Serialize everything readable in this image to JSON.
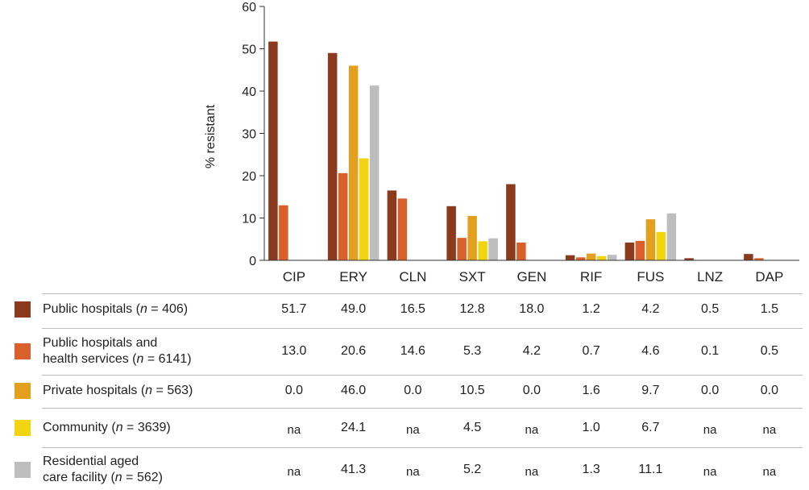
{
  "colors": [
    "#8b3a1e",
    "#d9602b",
    "#e3a01e",
    "#f2d410",
    "#bdbdbd"
  ],
  "chart_data": {
    "type": "bar",
    "title": "",
    "xlabel": "",
    "ylabel": "% resistant",
    "ylim": [
      0,
      60
    ],
    "yticks": [
      0,
      10,
      20,
      30,
      40,
      50,
      60
    ],
    "grid": false,
    "categories": [
      "CIP",
      "ERY",
      "CLN",
      "SXT",
      "GEN",
      "RIF",
      "FUS",
      "LNZ",
      "DAP"
    ],
    "series": [
      {
        "legend_prefix": "Public hospitals (",
        "n_label": "n",
        "n_suffix": " = 406)",
        "values": [
          51.7,
          49.0,
          16.5,
          12.8,
          18.0,
          1.2,
          4.2,
          0.5,
          1.5
        ],
        "labels": [
          "51.7",
          "49.0",
          "16.5",
          "12.8",
          "18.0",
          "1.2",
          "4.2",
          "0.5",
          "1.5"
        ]
      },
      {
        "legend_line1": "Public hospitals and",
        "legend_prefix": "health services (",
        "n_label": "n",
        "n_suffix": "  = 6141)",
        "values": [
          13.0,
          20.6,
          14.6,
          5.3,
          4.2,
          0.7,
          4.6,
          0.1,
          0.5
        ],
        "labels": [
          "13.0",
          "20.6",
          "14.6",
          "5.3",
          "4.2",
          "0.7",
          "4.6",
          "0.1",
          "0.5"
        ]
      },
      {
        "legend_prefix": "Private hospitals (",
        "n_label": "n",
        "n_suffix": " = 563)",
        "values": [
          0.0,
          46.0,
          0.0,
          10.5,
          0.0,
          1.6,
          9.7,
          0.0,
          0.0
        ],
        "labels": [
          "0.0",
          "46.0",
          "0.0",
          "10.5",
          "0.0",
          "1.6",
          "9.7",
          "0.0",
          "0.0"
        ]
      },
      {
        "legend_prefix": "Community (",
        "n_label": "n",
        "n_suffix": " = 3639)",
        "values": [
          null,
          24.1,
          null,
          4.5,
          null,
          1.0,
          6.7,
          null,
          null
        ],
        "labels": [
          "na",
          "24.1",
          "na",
          "4.5",
          "na",
          "1.0",
          "6.7",
          "na",
          "na"
        ]
      },
      {
        "legend_line1": "Residential aged",
        "legend_prefix": "care facility (",
        "n_label": "n",
        "n_suffix": " = 562)",
        "values": [
          null,
          41.3,
          null,
          5.2,
          null,
          1.3,
          11.1,
          null,
          null
        ],
        "labels": [
          "na",
          "41.3",
          "na",
          "5.2",
          "na",
          "1.3",
          "11.1",
          "na",
          "na"
        ]
      }
    ]
  }
}
